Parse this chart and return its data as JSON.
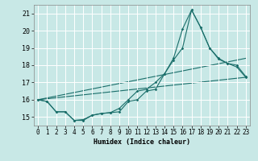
{
  "xlabel": "Humidex (Indice chaleur)",
  "xlim": [
    -0.5,
    23.5
  ],
  "ylim": [
    14.5,
    21.5
  ],
  "yticks": [
    15,
    16,
    17,
    18,
    19,
    20,
    21
  ],
  "xticks": [
    0,
    1,
    2,
    3,
    4,
    5,
    6,
    7,
    8,
    9,
    10,
    11,
    12,
    13,
    14,
    15,
    16,
    17,
    18,
    19,
    20,
    21,
    22,
    23
  ],
  "background_color": "#c8e8e6",
  "grid_color": "#e8e8e8",
  "line_color": "#1a6e6a",
  "curve1_x": [
    0,
    1,
    2,
    3,
    4,
    5,
    6,
    7,
    8,
    9,
    10,
    11,
    12,
    13,
    14,
    15,
    16,
    17,
    18,
    19,
    20,
    21,
    22,
    23
  ],
  "curve1_y": [
    16.0,
    15.9,
    15.3,
    15.3,
    14.8,
    14.8,
    15.1,
    15.2,
    15.25,
    15.3,
    15.9,
    16.0,
    16.5,
    16.6,
    17.5,
    18.3,
    19.0,
    21.2,
    20.2,
    19.0,
    18.35,
    18.1,
    17.9,
    17.3
  ],
  "curve2_x": [
    0,
    1,
    2,
    3,
    4,
    5,
    6,
    7,
    8,
    9,
    10,
    11,
    12,
    13,
    14,
    15,
    16,
    17,
    18,
    19,
    20,
    21,
    22,
    23
  ],
  "curve2_y": [
    16.0,
    15.9,
    15.3,
    15.3,
    14.8,
    14.85,
    15.1,
    15.2,
    15.25,
    15.5,
    16.0,
    16.5,
    16.6,
    17.0,
    17.5,
    18.4,
    20.1,
    21.2,
    20.2,
    19.0,
    18.4,
    18.1,
    18.0,
    17.35
  ],
  "trend1_x": [
    0,
    23
  ],
  "trend1_y": [
    16.0,
    17.3
  ],
  "trend2_x": [
    0,
    23
  ],
  "trend2_y": [
    16.0,
    18.4
  ]
}
